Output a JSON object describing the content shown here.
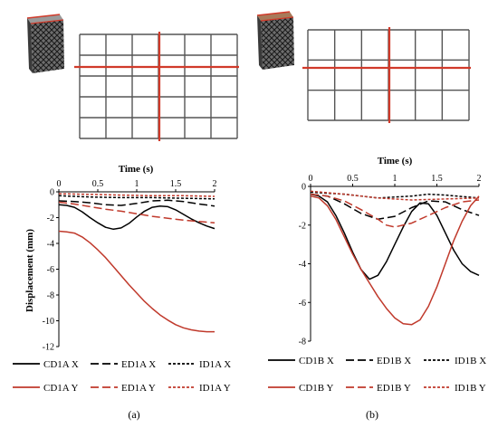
{
  "colors": {
    "black": "#000000",
    "red": "#c0392b",
    "grid": "#555555",
    "tower_red": "#d13a2a"
  },
  "chart_data": [
    {
      "type": "line",
      "panel_label": "(a)",
      "xlabel": "Time (s)",
      "ylabel": "Displacement (mm)",
      "xlim": [
        0,
        2
      ],
      "ylim": [
        -12,
        0
      ],
      "x_ticks": [
        "0",
        "0.5",
        "1",
        "1.5",
        "2"
      ],
      "y_ticks": [
        "0",
        "-2",
        "-4",
        "-6",
        "-8",
        "-10",
        "-12"
      ],
      "series": [
        {
          "name": "CD1A X",
          "color": "black",
          "dash": "solid",
          "x": [
            0,
            0.1,
            0.2,
            0.3,
            0.4,
            0.5,
            0.6,
            0.7,
            0.8,
            0.9,
            1.0,
            1.1,
            1.2,
            1.3,
            1.4,
            1.5,
            1.6,
            1.7,
            1.8,
            1.9,
            2.0
          ],
          "y": [
            -1.0,
            -1.05,
            -1.2,
            -1.55,
            -2.0,
            -2.4,
            -2.75,
            -2.9,
            -2.8,
            -2.45,
            -1.95,
            -1.5,
            -1.2,
            -1.1,
            -1.15,
            -1.4,
            -1.75,
            -2.1,
            -2.4,
            -2.65,
            -2.85
          ]
        },
        {
          "name": "ED1A X",
          "color": "black",
          "dash": "long",
          "x": [
            0,
            0.2,
            0.4,
            0.6,
            0.8,
            1.0,
            1.2,
            1.4,
            1.6,
            1.8,
            2.0
          ],
          "y": [
            -0.7,
            -0.75,
            -0.85,
            -1.0,
            -1.05,
            -0.9,
            -0.7,
            -0.65,
            -0.75,
            -0.95,
            -1.1
          ]
        },
        {
          "name": "ID1A X",
          "color": "black",
          "dash": "short",
          "x": [
            0,
            0.4,
            0.8,
            1.2,
            1.6,
            2.0
          ],
          "y": [
            -0.3,
            -0.4,
            -0.45,
            -0.45,
            -0.5,
            -0.55
          ]
        },
        {
          "name": "CD1A Y",
          "color": "red",
          "dash": "solid",
          "x": [
            0,
            0.1,
            0.2,
            0.3,
            0.4,
            0.5,
            0.6,
            0.7,
            0.8,
            0.9,
            1.0,
            1.1,
            1.2,
            1.3,
            1.4,
            1.5,
            1.6,
            1.7,
            1.8,
            1.9,
            2.0
          ],
          "y": [
            -3.05,
            -3.1,
            -3.2,
            -3.5,
            -3.95,
            -4.5,
            -5.1,
            -5.8,
            -6.5,
            -7.2,
            -7.85,
            -8.5,
            -9.05,
            -9.55,
            -9.95,
            -10.3,
            -10.55,
            -10.7,
            -10.8,
            -10.85,
            -10.85
          ]
        },
        {
          "name": "ED1A Y",
          "color": "red",
          "dash": "long",
          "x": [
            0,
            0.2,
            0.4,
            0.6,
            0.8,
            1.0,
            1.2,
            1.4,
            1.6,
            1.8,
            2.0
          ],
          "y": [
            -0.8,
            -0.95,
            -1.15,
            -1.35,
            -1.5,
            -1.7,
            -1.9,
            -2.05,
            -2.2,
            -2.3,
            -2.4
          ]
        },
        {
          "name": "ID1A Y",
          "color": "red",
          "dash": "short",
          "x": [
            0,
            0.4,
            0.8,
            1.2,
            1.6,
            2.0
          ],
          "y": [
            -0.15,
            -0.2,
            -0.25,
            -0.3,
            -0.3,
            -0.35
          ]
        }
      ]
    },
    {
      "type": "line",
      "panel_label": "(b)",
      "xlabel": "Time (s)",
      "ylabel": "",
      "xlim": [
        0,
        2
      ],
      "ylim": [
        -8,
        0
      ],
      "x_ticks": [
        "0",
        "0.5",
        "1",
        "1.5",
        "2"
      ],
      "y_ticks": [
        "0",
        "-2",
        "-4",
        "-6",
        "-8"
      ],
      "series": [
        {
          "name": "CD1B X",
          "color": "black",
          "dash": "solid",
          "x": [
            0,
            0.1,
            0.2,
            0.3,
            0.4,
            0.5,
            0.6,
            0.7,
            0.8,
            0.9,
            1.0,
            1.1,
            1.2,
            1.3,
            1.4,
            1.5,
            1.6,
            1.7,
            1.8,
            1.9,
            2.0
          ],
          "y": [
            -0.4,
            -0.5,
            -0.8,
            -1.5,
            -2.4,
            -3.4,
            -4.3,
            -4.8,
            -4.6,
            -3.9,
            -3.0,
            -2.1,
            -1.3,
            -0.85,
            -0.9,
            -1.5,
            -2.4,
            -3.3,
            -4.0,
            -4.4,
            -4.6
          ]
        },
        {
          "name": "ED1B X",
          "color": "black",
          "dash": "long",
          "x": [
            0,
            0.2,
            0.4,
            0.6,
            0.8,
            1.0,
            1.2,
            1.4,
            1.6,
            1.8,
            2.0
          ],
          "y": [
            -0.4,
            -0.5,
            -0.9,
            -1.4,
            -1.7,
            -1.55,
            -1.1,
            -0.75,
            -0.8,
            -1.2,
            -1.5
          ]
        },
        {
          "name": "ID1B X",
          "color": "black",
          "dash": "short",
          "x": [
            0,
            0.4,
            0.8,
            1.2,
            1.4,
            1.6,
            2.0
          ],
          "y": [
            -0.3,
            -0.4,
            -0.6,
            -0.5,
            -0.4,
            -0.45,
            -0.6
          ]
        },
        {
          "name": "CD1B Y",
          "color": "red",
          "dash": "solid",
          "x": [
            0,
            0.1,
            0.2,
            0.3,
            0.4,
            0.5,
            0.6,
            0.7,
            0.8,
            0.9,
            1.0,
            1.1,
            1.2,
            1.3,
            1.4,
            1.5,
            1.6,
            1.7,
            1.8,
            1.9,
            2.0
          ],
          "y": [
            -0.5,
            -0.6,
            -1.0,
            -1.7,
            -2.6,
            -3.5,
            -4.3,
            -5.0,
            -5.7,
            -6.3,
            -6.8,
            -7.1,
            -7.15,
            -6.9,
            -6.2,
            -5.2,
            -4.0,
            -2.8,
            -1.8,
            -1.0,
            -0.5
          ]
        },
        {
          "name": "ED1B Y",
          "color": "red",
          "dash": "long",
          "x": [
            0,
            0.2,
            0.4,
            0.6,
            0.8,
            0.9,
            1.0,
            1.2,
            1.4,
            1.6,
            1.8,
            2.0
          ],
          "y": [
            -0.4,
            -0.5,
            -0.75,
            -1.2,
            -1.7,
            -2.0,
            -2.1,
            -1.9,
            -1.5,
            -1.1,
            -0.8,
            -0.7
          ]
        },
        {
          "name": "ID1B Y",
          "color": "red",
          "dash": "short",
          "x": [
            0,
            0.4,
            0.8,
            1.2,
            1.6,
            2.0
          ],
          "y": [
            -0.25,
            -0.4,
            -0.6,
            -0.7,
            -0.65,
            -0.6
          ]
        }
      ]
    }
  ]
}
